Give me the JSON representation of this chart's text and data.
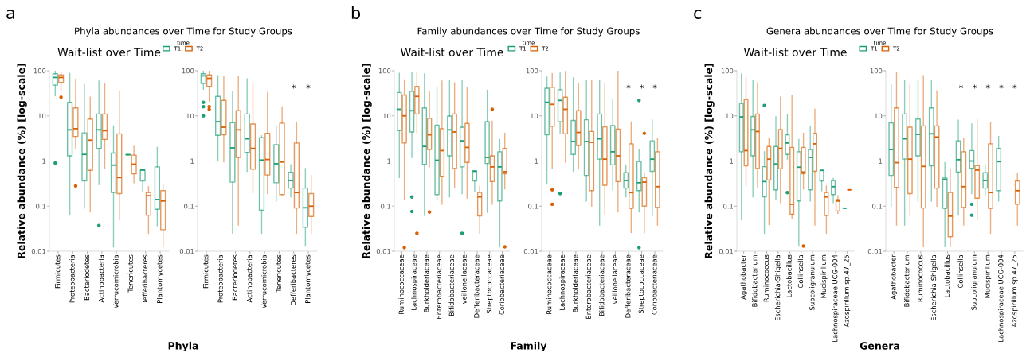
{
  "chart_data": [
    {
      "type": "box",
      "title": "Phyla abundances over Time for Study Groups",
      "subtitle": "Wait-list over Time",
      "xlabel": "Phyla",
      "ylabel": "Relative abundance (%) [log-scale]",
      "legend_title": "time",
      "legend": "top",
      "log": true,
      "ylim": [
        0.01,
        100
      ],
      "yticks": [
        0.01,
        0.1,
        1,
        10,
        100
      ],
      "annotations": [
        "a"
      ],
      "categories": [
        "Firmicutes",
        "Proteobacteria",
        "Bacteriodetes",
        "Actinobacteria",
        "Verrucomicrobia",
        "Tenericutes",
        "Defferibacteres",
        "Plantomycetes"
      ],
      "series": [
        {
          "name": "T1",
          "color": "#1b9e77",
          "boxes": [
            {
              "low": 28,
              "q1": 48,
              "median": 71,
              "q3": 86,
              "high": 100,
              "outliers": [
                0.9
              ]
            },
            {
              "low": 0.066,
              "q1": 1.3,
              "median": 4.9,
              "q3": 20,
              "high": 87
            },
            {
              "low": 0.09,
              "q1": 0.36,
              "median": 1.4,
              "q3": 4.2,
              "high": 50
            },
            {
              "low": 0.3,
              "q1": 1.9,
              "median": 4.9,
              "q3": 11,
              "high": 59,
              "outliers": [
                0.037
              ]
            },
            {
              "low": 0.0125,
              "q1": 0.2,
              "median": 0.81,
              "q3": 1.5,
              "high": 6.0
            },
            {
              "low": 1.38,
              "q1": 1.38,
              "median": 1.38,
              "q3": 1.38,
              "high": 1.38
            },
            {
              "low": 0.21,
              "q1": 0.36,
              "median": 0.63,
              "q3": 0.63,
              "high": 0.63
            },
            {
              "low": 0.037,
              "q1": 0.085,
              "median": 0.14,
              "q3": 0.74,
              "high": 2.0
            }
          ]
        },
        {
          "name": "T2",
          "color": "#d95f02",
          "boxes": [
            {
              "low": 35,
              "q1": 55,
              "median": 71,
              "q3": 81,
              "high": 93,
              "outliers": [
                26
              ]
            },
            {
              "low": 1.9,
              "q1": 3.5,
              "median": 5.2,
              "q3": 15,
              "high": 65,
              "outliers": [
                0.28
              ]
            },
            {
              "low": 0.074,
              "q1": 0.62,
              "median": 2.9,
              "q3": 8.5,
              "high": 26
            },
            {
              "low": 0.69,
              "q1": 3.0,
              "median": 4.7,
              "q3": 11,
              "high": 52
            },
            {
              "low": 0.05,
              "q1": 0.19,
              "median": 0.43,
              "q3": 4.0,
              "high": 35
            },
            {
              "low": 0.33,
              "q1": 0.52,
              "median": 0.85,
              "q3": 1.35,
              "high": 2.1
            },
            {
              "low": 0.025,
              "q1": 0.063,
              "median": 0.17,
              "q3": 0.2,
              "high": 0.27
            },
            {
              "low": 0.0125,
              "q1": 0.03,
              "median": 0.13,
              "q3": 0.22,
              "high": 0.29
            }
          ]
        }
      ]
    },
    {
      "type": "box",
      "log": true,
      "ylim": [
        0.01,
        100
      ],
      "yticks": [
        0.01,
        0.1,
        1,
        10,
        100
      ],
      "annotations": [
        "*",
        "*"
      ],
      "categories": [
        "Firmicutes",
        "Proteobacteria",
        "Bacteriodetes",
        "Actinobacteria",
        "Verrucomicrobia",
        "Tenericutes",
        "Defferibacteres",
        "Plantomycetes"
      ],
      "series": [
        {
          "color": "#1b9e77",
          "boxes": [
            {
              "low": 39,
              "q1": 52,
              "median": 77,
              "q3": 86,
              "high": 97,
              "outliers": [
                20,
                16,
                10
              ]
            },
            {
              "low": 1.0,
              "q1": 3.7,
              "median": 7.4,
              "q3": 27,
              "high": 78
            },
            {
              "low": 0.025,
              "q1": 0.34,
              "median": 1.95,
              "q3": 7.1,
              "high": 35
            },
            {
              "low": 0.59,
              "q1": 1.55,
              "median": 3.1,
              "q3": 11,
              "high": 66
            },
            {
              "low": 0.025,
              "q1": 0.081,
              "median": 1.05,
              "q3": 3.3,
              "high": 3.6
            },
            {
              "low": 0.13,
              "q1": 0.33,
              "median": 0.87,
              "q3": 2.3,
              "high": 6.0
            },
            {
              "low": 0.16,
              "q1": 0.25,
              "median": 0.37,
              "q3": 0.56,
              "high": 0.83
            },
            {
              "low": 0.013,
              "q1": 0.034,
              "median": 0.092,
              "q3": 0.25,
              "high": 0.68
            }
          ]
        },
        {
          "color": "#d95f02",
          "boxes": [
            {
              "low": 21,
              "q1": 45,
              "median": 68,
              "q3": 81,
              "high": 99,
              "outliers": [
                16,
                14
              ]
            },
            {
              "low": 0.96,
              "q1": 3.8,
              "median": 5.6,
              "q3": 22,
              "high": 75
            },
            {
              "low": 0.038,
              "q1": 1.2,
              "median": 4.9,
              "q3": 13,
              "high": 76
            },
            {
              "low": 0.2,
              "q1": 0.66,
              "median": 1.9,
              "q3": 6.6,
              "high": 51
            },
            {
              "low": 0.19,
              "q1": 0.49,
              "median": 1.08,
              "q3": 4.1,
              "high": 33
            },
            {
              "low": 0.18,
              "q1": 0.18,
              "median": 0.95,
              "q3": 6.9,
              "high": 16
            },
            {
              "low": 0.025,
              "q1": 0.091,
              "median": 0.2,
              "q3": 2.5,
              "high": 7.3
            },
            {
              "low": 0.025,
              "q1": 0.059,
              "median": 0.1,
              "q3": 0.19,
              "high": 0.48
            }
          ]
        }
      ]
    },
    {
      "type": "box",
      "title": "Family abundances over Time for Study Groups",
      "subtitle": "Wait-list over Time",
      "xlabel": "Family",
      "ylabel": "Relative abundance (%) [log-scale]",
      "legend_title": "time",
      "legend": "top",
      "log": true,
      "ylim": [
        0.01,
        100
      ],
      "yticks": [
        0.01,
        0.1,
        1,
        10,
        100
      ],
      "annotations": [
        "b"
      ],
      "categories": [
        "Ruminococcaceae",
        "Lachnospiraceae",
        "Burkholderiaceae",
        "Enterobacteriaceae",
        "Bifidobacteriaceae",
        "veillonellaceae",
        "Defferibacteraceae",
        "Streptococcaceae",
        "Coriobacteriaceae"
      ],
      "series": [
        {
          "name": "T1",
          "color": "#1b9e77",
          "boxes": [
            {
              "low": 0.43,
              "q1": 4.7,
              "median": 14,
              "q3": 33,
              "high": 88
            },
            {
              "low": 1.2,
              "q1": 4.4,
              "median": 13,
              "q3": 35,
              "high": 93,
              "outliers": [
                0.16,
                0.076
              ]
            },
            {
              "low": 0.062,
              "q1": 0.84,
              "median": 2.1,
              "q3": 15,
              "high": 85
            },
            {
              "low": 0.14,
              "q1": 0.18,
              "median": 1.04,
              "q3": 6.2,
              "high": 43
            },
            {
              "low": 0.16,
              "q1": 1.3,
              "median": 4.9,
              "q3": 9.9,
              "high": 62
            },
            {
              "low": 0.19,
              "q1": 0.74,
              "median": 2.8,
              "q3": 5.6,
              "high": 60,
              "outliers": [
                0.025
              ]
            },
            {
              "low": 0.21,
              "q1": 0.36,
              "median": 0.59,
              "q3": 0.61,
              "high": 0.61
            },
            {
              "low": 0.073,
              "q1": 0.88,
              "median": 1.2,
              "q3": 7.5,
              "high": 37
            },
            {
              "low": 0.0125,
              "q1": 0.13,
              "median": 0.74,
              "q3": 1.6,
              "high": 3.0
            }
          ]
        },
        {
          "name": "T2",
          "color": "#d95f02",
          "boxes": [
            {
              "low": 0.14,
              "q1": 2.5,
              "median": 10,
              "q3": 29,
              "high": 63,
              "outliers": [
                0.012
              ]
            },
            {
              "low": 4.2,
              "q1": 11,
              "median": 27,
              "q3": 45,
              "high": 91,
              "outliers": [
                0.025
              ]
            },
            {
              "low": 0.74,
              "q1": 1.8,
              "median": 3.8,
              "q3": 8.8,
              "high": 35,
              "outliers": [
                0.074
              ]
            },
            {
              "low": 0.11,
              "q1": 0.46,
              "median": 1.7,
              "q3": 5.2,
              "high": 59
            },
            {
              "low": 0.26,
              "q1": 0.68,
              "median": 4.4,
              "q3": 11,
              "high": 54
            },
            {
              "low": 0.15,
              "q1": 0.93,
              "median": 2.0,
              "q3": 6.8,
              "high": 43
            },
            {
              "low": 0.025,
              "q1": 0.061,
              "median": 0.16,
              "q3": 0.2,
              "high": 0.27
            },
            {
              "low": 0.11,
              "q1": 0.35,
              "median": 0.74,
              "q3": 1.3,
              "high": 7.6,
              "outliers": [
                14
              ]
            },
            {
              "low": 0.24,
              "q1": 0.52,
              "median": 0.58,
              "q3": 1.9,
              "high": 4.1,
              "outliers": [
                0.0125
              ]
            }
          ]
        }
      ]
    },
    {
      "type": "box",
      "log": true,
      "ylim": [
        0.01,
        100
      ],
      "yticks": [
        0.01,
        0.1,
        1,
        10,
        100
      ],
      "annotations": [
        "*",
        "*",
        "*"
      ],
      "categories": [
        "Ruminococcaceae",
        "Lachnospiraceae",
        "Burkholderiaceae",
        "Enterobacteriaceae",
        "Bifidobacteriaceae",
        "veillonellaceae",
        "Defferibacteraceae",
        "Streptococcaceae",
        "Coriobacteriaceae"
      ],
      "series": [
        {
          "color": "#1b9e77",
          "boxes": [
            {
              "low": 0.31,
              "q1": 3.8,
              "median": 20,
              "q3": 41,
              "high": 72
            },
            {
              "low": 4.1,
              "q1": 7.4,
              "median": 22,
              "q3": 38,
              "high": 89,
              "outliers": [
                0.19
              ]
            },
            {
              "low": 0.59,
              "q1": 1.4,
              "median": 2.7,
              "q3": 7.9,
              "high": 70
            },
            {
              "low": 0.13,
              "q1": 0.48,
              "median": 2.7,
              "q3": 8.2,
              "high": 62
            },
            {
              "low": 0.038,
              "q1": 1.1,
              "median": 3.1,
              "q3": 11,
              "high": 62
            },
            {
              "low": 0.23,
              "q1": 0.82,
              "median": 1.6,
              "q3": 6.1,
              "high": 23
            },
            {
              "low": 0.16,
              "q1": 0.25,
              "median": 0.37,
              "q3": 0.55,
              "high": 0.82
            },
            {
              "low": 0.074,
              "q1": 0.22,
              "median": 0.33,
              "q3": 0.98,
              "high": 1.8,
              "outliers": [
                22,
                0.012
              ]
            },
            {
              "low": 0.062,
              "q1": 0.59,
              "median": 1.1,
              "q3": 2.8,
              "high": 8.1
            }
          ]
        },
        {
          "color": "#d95f02",
          "boxes": [
            {
              "low": 0.68,
              "q1": 5.9,
              "median": 18,
              "q3": 43,
              "high": 86,
              "outliers": [
                0.23,
                0.11
              ]
            },
            {
              "low": 0.94,
              "q1": 4.0,
              "median": 14,
              "q3": 26,
              "high": 96
            },
            {
              "low": 0.68,
              "q1": 2.2,
              "median": 4.3,
              "q3": 13,
              "high": 53
            },
            {
              "low": 0.1,
              "q1": 0.22,
              "median": 2.6,
              "q3": 4.5,
              "high": 60
            },
            {
              "low": 0.064,
              "q1": 0.29,
              "median": 1.1,
              "q3": 5.7,
              "high": 52
            },
            {
              "low": 0.074,
              "q1": 0.35,
              "median": 1.3,
              "q3": 5.1,
              "high": 100
            },
            {
              "low": 0.026,
              "q1": 0.089,
              "median": 0.2,
              "q3": 2.4,
              "high": 7.3
            },
            {
              "low": 0.026,
              "q1": 0.1,
              "median": 0.34,
              "q3": 0.43,
              "high": 0.53,
              "outliers": [
                4.1
              ]
            },
            {
              "low": 0.038,
              "q1": 0.093,
              "median": 0.27,
              "q3": 1.6,
              "high": 3.2
            }
          ]
        }
      ]
    },
    {
      "type": "box",
      "title": "Genera abundances over Time for Study Groups",
      "subtitle": "Wait-list over Time",
      "xlabel": "Genera",
      "ylabel": "Relative abundance (%) [log-scale]",
      "legend_title": "time",
      "legend": "top",
      "log": true,
      "ylim": [
        0.01,
        100
      ],
      "yticks": [
        0.01,
        0.1,
        1,
        10,
        100
      ],
      "annotations": [
        "c"
      ],
      "categories": [
        "Agathobacter",
        "Bifidobacterium",
        "Ruminococcus",
        "Escherichia-Shigella",
        "Lactobacillus",
        "Collinsella",
        "Subcoligranulum",
        "Mucispirillum",
        "Lachnospiraceae UCG-004",
        "Azospirillum sp.47_25"
      ],
      "series": [
        {
          "name": "T1",
          "color": "#1b9e77",
          "boxes": [
            {
              "low": 0.05,
              "q1": 1.6,
              "median": 9.5,
              "q3": 19,
              "high": 85
            },
            {
              "low": 0.16,
              "q1": 1.3,
              "median": 4.9,
              "q3": 9.7,
              "high": 61
            },
            {
              "low": 0.025,
              "q1": 0.16,
              "median": 0.35,
              "q3": 0.75,
              "high": 1.6,
              "outliers": [
                17
              ]
            },
            {
              "low": 0.14,
              "q1": 0.23,
              "median": 0.86,
              "q3": 2.1,
              "high": 9.5
            },
            {
              "low": 1.1,
              "q1": 1.4,
              "median": 2.5,
              "q3": 3.8,
              "high": 10.6,
              "outliers": [
                0.2
              ]
            },
            {
              "low": 0.013,
              "q1": 0.13,
              "median": 0.73,
              "q3": 1.6,
              "high": 3.0
            },
            {
              "low": 0.13,
              "q1": 0.23,
              "median": 1.2,
              "q3": 1.8,
              "high": 5.9
            },
            {
              "low": 0.22,
              "q1": 0.36,
              "median": 0.62,
              "q3": 0.62,
              "high": 0.62
            },
            {
              "low": 0.12,
              "q1": 0.18,
              "median": 0.27,
              "q3": 0.37,
              "high": 0.41
            },
            {
              "low": 0.09,
              "q1": 0.09,
              "median": 0.09,
              "q3": 0.09,
              "high": 0.09
            }
          ]
        },
        {
          "name": "T2",
          "color": "#d95f02",
          "boxes": [
            {
              "low": 0.29,
              "q1": 0.78,
              "median": 1.7,
              "q3": 23,
              "high": 71
            },
            {
              "low": 0.26,
              "q1": 0.68,
              "median": 4.5,
              "q3": 11,
              "high": 54
            },
            {
              "low": 0.039,
              "q1": 0.38,
              "median": 1.1,
              "q3": 2.1,
              "high": 3.2
            },
            {
              "low": 0.12,
              "q1": 0.67,
              "median": 1.9,
              "q3": 5.0,
              "high": 26
            },
            {
              "low": 0.052,
              "q1": 0.066,
              "median": 0.11,
              "q3": 2.0,
              "high": 28
            },
            {
              "low": 0.24,
              "q1": 0.52,
              "median": 0.57,
              "q3": 2.0,
              "high": 4.1,
              "outliers": [
                0.013
              ]
            },
            {
              "low": 0.038,
              "q1": 0.59,
              "median": 2.4,
              "q3": 4.1,
              "high": 14
            },
            {
              "low": 0.025,
              "q1": 0.062,
              "median": 0.16,
              "q3": 0.2,
              "high": 0.28
            },
            {
              "low": 0.069,
              "q1": 0.078,
              "median": 0.13,
              "q3": 0.14,
              "high": 0.17
            },
            {
              "low": 0.23,
              "q1": 0.23,
              "median": 0.23,
              "q3": 0.23,
              "high": 0.23
            }
          ]
        }
      ]
    },
    {
      "type": "box",
      "log": true,
      "ylim": [
        0.01,
        100
      ],
      "yticks": [
        0.01,
        0.1,
        1,
        10,
        100
      ],
      "annotations": [
        "*",
        "*",
        "*",
        "*",
        "*"
      ],
      "categories": [
        "Agathobacter",
        "Bifidobacterium",
        "Ruminococcus",
        "Escherichia-Shigella",
        "Lactobacillus",
        "Collinsella",
        "Subcoligranulum",
        "Mucispirillum",
        "Lachnospiraceae UCG-004",
        "Azospirillum sp.47_25"
      ],
      "series": [
        {
          "color": "#1b9e77",
          "boxes": [
            {
              "low": 0.1,
              "q1": 0.48,
              "median": 1.8,
              "q3": 7.0,
              "high": 49
            },
            {
              "low": 0.038,
              "q1": 1.1,
              "median": 3.1,
              "q3": 11,
              "high": 62
            },
            {
              "low": 0.13,
              "q1": 1.3,
              "median": 3.9,
              "q3": 8.5,
              "high": 62
            },
            {
              "low": 0.13,
              "q1": 0.78,
              "median": 4.0,
              "q3": 15,
              "high": 60
            },
            {
              "low": 0.0126,
              "q1": 0.089,
              "median": 0.39,
              "q3": 0.42,
              "high": 0.92
            },
            {
              "low": 0.063,
              "q1": 0.57,
              "median": 1.07,
              "q3": 2.8,
              "high": 8.0
            },
            {
              "low": 0.19,
              "q1": 0.69,
              "median": 1.0,
              "q3": 1.7,
              "high": 6.6,
              "outliers": [
                0.11,
                0.063
              ]
            },
            {
              "low": 0.17,
              "q1": 0.25,
              "median": 0.37,
              "q3": 0.55,
              "high": 0.81
            },
            {
              "low": 0.13,
              "q1": 0.22,
              "median": 0.97,
              "q3": 1.9,
              "high": 3.5
            },
            null
          ]
        },
        {
          "color": "#d95f02",
          "boxes": [
            {
              "low": 0.038,
              "q1": 0.26,
              "median": 0.92,
              "q3": 15,
              "high": 93
            },
            {
              "low": 0.063,
              "q1": 0.19,
              "median": 1.1,
              "q3": 5.6,
              "high": 50
            },
            {
              "low": 0.0126,
              "q1": 0.091,
              "median": 0.76,
              "q3": 6.0,
              "high": 78
            },
            {
              "low": 0.1,
              "q1": 0.25,
              "median": 3.4,
              "q3": 6.0,
              "high": 36
            },
            {
              "low": 0.0126,
              "q1": 0.021,
              "median": 0.06,
              "q3": 0.2,
              "high": 0.64
            },
            {
              "low": 0.038,
              "q1": 0.093,
              "median": 0.27,
              "q3": 1.6,
              "high": 3.1
            },
            {
              "low": 0.05,
              "q1": 0.15,
              "median": 0.63,
              "q3": 0.79,
              "high": 8.3
            },
            {
              "low": 0.025,
              "q1": 0.089,
              "median": 0.2,
              "q3": 2.4,
              "high": 7.1
            },
            null,
            {
              "low": 0.038,
              "q1": 0.11,
              "median": 0.22,
              "q3": 0.36,
              "high": 0.52
            }
          ]
        }
      ]
    }
  ]
}
